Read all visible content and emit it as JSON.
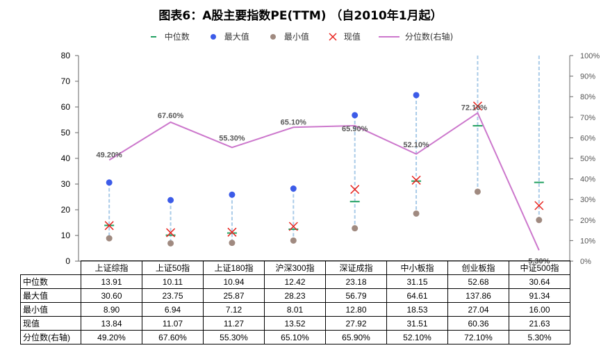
{
  "title": "图表6：A股主要指数PE(TTM) （自2010年1月起）",
  "legend": [
    {
      "label": "中位数",
      "icon": "median-dash-icon",
      "color": "#20a060"
    },
    {
      "label": "最大值",
      "icon": "max-dot-icon",
      "color": "#3c5be8"
    },
    {
      "label": "最小值",
      "icon": "min-dot-icon",
      "color": "#a08a80"
    },
    {
      "label": "现值",
      "icon": "current-cross-icon",
      "color": "#e8231e"
    },
    {
      "label": "分位数(右轴)",
      "icon": "percentile-line-icon",
      "color": "#cc77cc"
    }
  ],
  "chart_data": {
    "type": "line",
    "categories": [
      "上证综指",
      "上证50指",
      "上证180指",
      "沪深300指",
      "深证成指",
      "中小板指",
      "创业板指",
      "中证500指"
    ],
    "series": [
      {
        "name": "中位数",
        "values": [
          13.91,
          10.11,
          10.94,
          12.42,
          23.18,
          31.15,
          52.68,
          30.64
        ]
      },
      {
        "name": "最大值",
        "values": [
          30.6,
          23.75,
          25.87,
          28.23,
          56.79,
          64.61,
          137.86,
          91.34
        ]
      },
      {
        "name": "最小值",
        "values": [
          8.9,
          6.94,
          7.12,
          8.01,
          12.8,
          18.53,
          27.04,
          16.0
        ]
      },
      {
        "name": "现值",
        "values": [
          13.84,
          11.07,
          11.27,
          13.52,
          27.92,
          31.51,
          60.36,
          21.63
        ]
      },
      {
        "name": "分位数(右轴)",
        "values": [
          49.2,
          67.6,
          55.3,
          65.1,
          65.9,
          52.1,
          72.1,
          5.3
        ]
      }
    ],
    "left_ticks": [
      "0",
      "10",
      "20",
      "30",
      "40",
      "50",
      "60",
      "70",
      "80"
    ],
    "right_ticks": [
      "0%",
      "10%",
      "20%",
      "30%",
      "40%",
      "50%",
      "60%",
      "70%",
      "80%",
      "90%",
      "100%"
    ],
    "ylim_left": [
      0,
      80
    ],
    "ylim_right": [
      0,
      100
    ],
    "percentile_labels": [
      "49.20%",
      "67.60%",
      "55.30%",
      "65.10%",
      "65.90%",
      "52.10%",
      "72.10%",
      "5.30%"
    ],
    "grid": false,
    "legend_position": "top"
  },
  "table": {
    "row_labels": [
      "中位数",
      "最大值",
      "最小值",
      "现值",
      "分位数(右轴)"
    ],
    "rows": [
      [
        "13.91",
        "10.11",
        "10.94",
        "12.42",
        "23.18",
        "31.15",
        "52.68",
        "30.64"
      ],
      [
        "30.60",
        "23.75",
        "25.87",
        "28.23",
        "56.79",
        "64.61",
        "137.86",
        "91.34"
      ],
      [
        "8.90",
        "6.94",
        "7.12",
        "8.01",
        "12.80",
        "18.53",
        "27.04",
        "16.00"
      ],
      [
        "13.84",
        "11.07",
        "11.27",
        "13.52",
        "27.92",
        "31.51",
        "60.36",
        "21.63"
      ],
      [
        "49.20%",
        "67.60%",
        "55.30%",
        "65.10%",
        "65.90%",
        "52.10%",
        "72.10%",
        "5.30%"
      ]
    ]
  }
}
